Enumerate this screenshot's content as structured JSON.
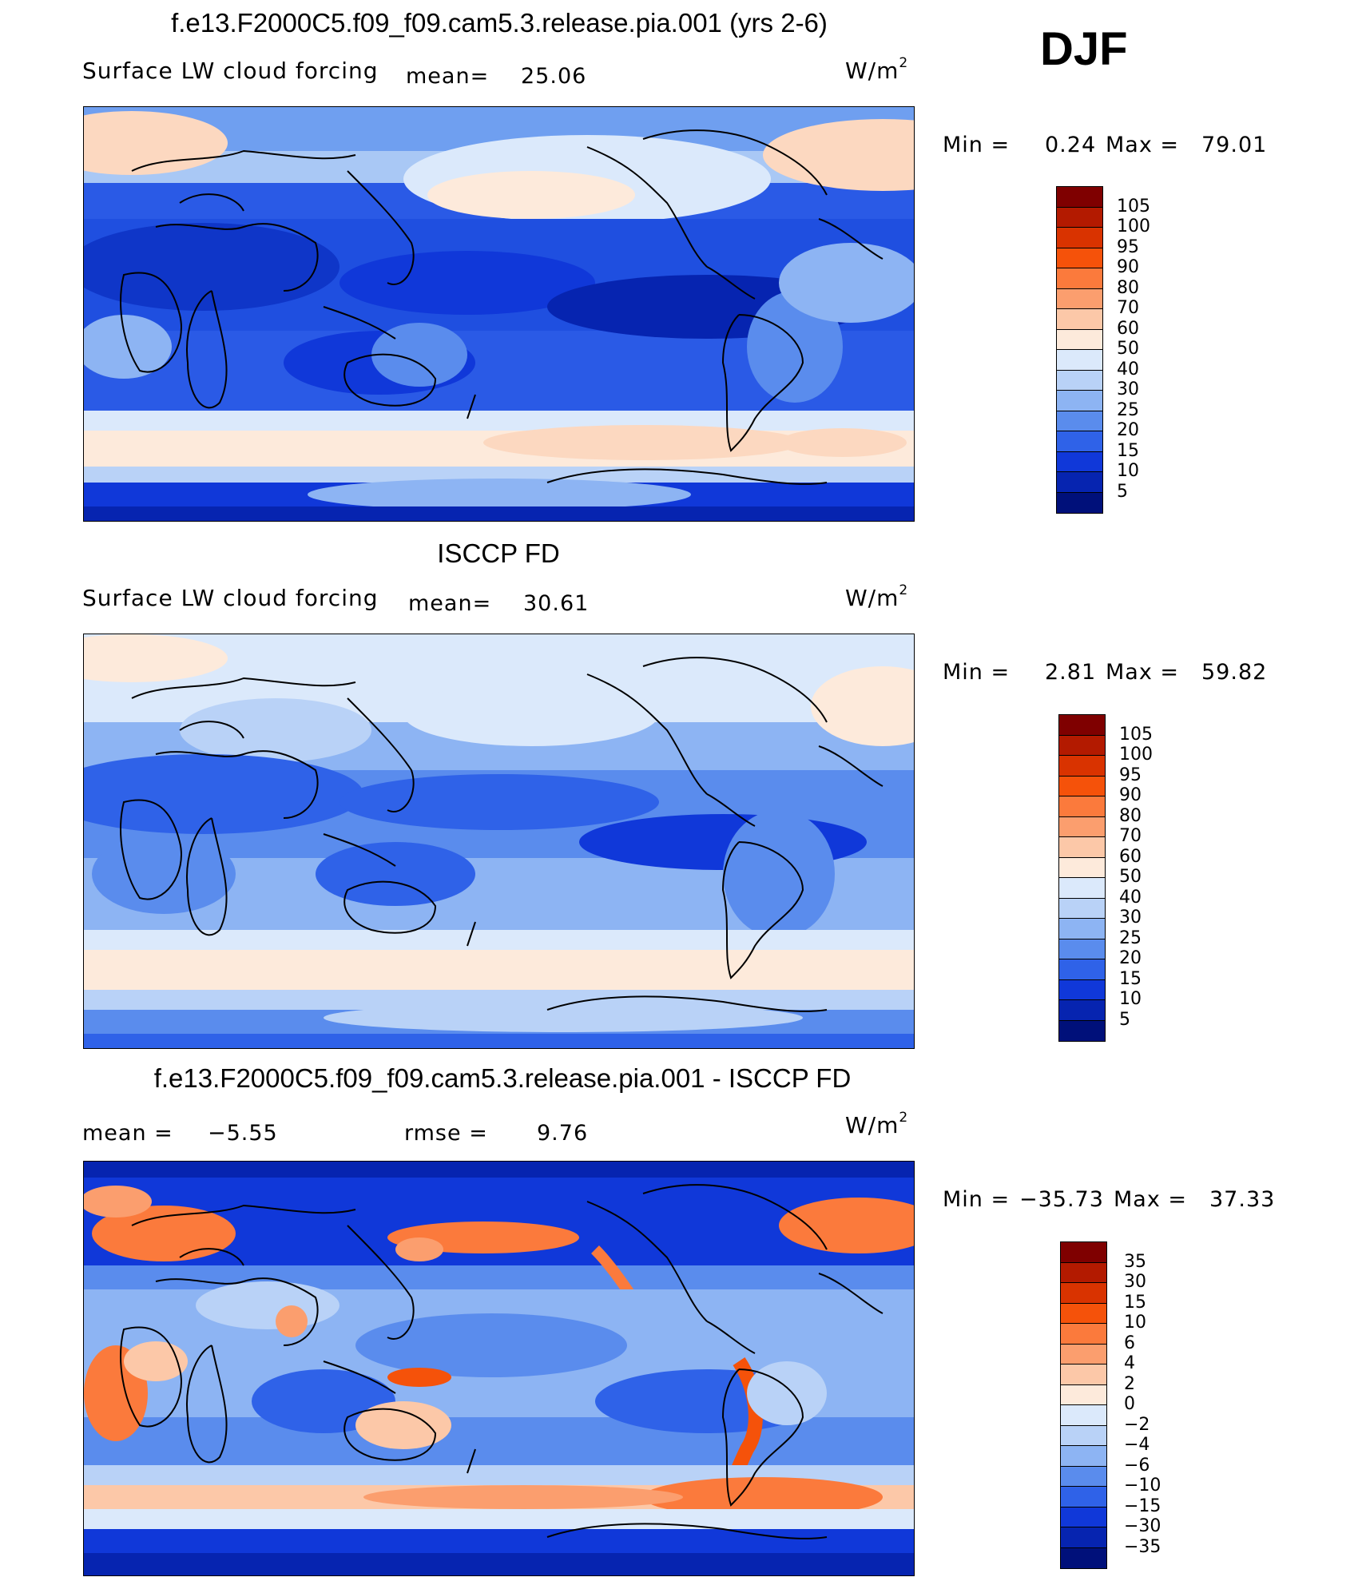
{
  "season": "DJF",
  "units_base": "W/m",
  "units_exp": "2",
  "panels": [
    {
      "title": "f.e13.F2000C5.f09_f09.cam5.3.release.pia.001 (yrs 2-6)",
      "variable": "Surface LW cloud forcing",
      "mean_label": "mean=",
      "mean_value": "25.06",
      "min_label": "Min  =",
      "min_value": "0.24",
      "max_label": "Max  =",
      "max_value": "79.01"
    },
    {
      "title": "ISCCP FD",
      "variable": "Surface LW cloud forcing",
      "mean_label": "mean=",
      "mean_value": "30.61",
      "min_label": "Min  =",
      "min_value": "2.81",
      "max_label": "Max  =",
      "max_value": "59.82"
    },
    {
      "title": "f.e13.F2000C5.f09_f09.cam5.3.release.pia.001 - ISCCP FD",
      "mean_label": "mean  =",
      "mean_value": "−5.55",
      "rmse_label": "rmse  =",
      "rmse_value": "9.76",
      "min_label": "Min  =",
      "min_value": "−35.73",
      "max_label": "Max  =",
      "max_value": "37.33"
    }
  ],
  "colorbars": {
    "field": {
      "ticks": [
        "105",
        "100",
        "95",
        "90",
        "80",
        "70",
        "60",
        "50",
        "40",
        "30",
        "25",
        "20",
        "15",
        "10",
        "5"
      ],
      "colors": [
        "#7f0000",
        "#b31a00",
        "#d93300",
        "#f5520a",
        "#fb7a3c",
        "#fb9e6e",
        "#fcc8a8",
        "#fdeadb",
        "#dbe9fb",
        "#b9d2f7",
        "#8db4f3",
        "#5a8ced",
        "#2f62e8",
        "#1038d9",
        "#0624b0",
        "#00107a"
      ]
    },
    "diff": {
      "ticks": [
        "35",
        "30",
        "15",
        "10",
        "6",
        "4",
        "2",
        "0",
        "−2",
        "−4",
        "−6",
        "−10",
        "−15",
        "−30",
        "−35"
      ],
      "colors": [
        "#7f0000",
        "#b31a00",
        "#d93300",
        "#f5520a",
        "#fb7a3c",
        "#fb9e6e",
        "#fcc8a8",
        "#fdeadb",
        "#dbe9fb",
        "#b9d2f7",
        "#8db4f3",
        "#5a8ced",
        "#2f62e8",
        "#1038d9",
        "#0624b0",
        "#00107a"
      ]
    }
  }
}
